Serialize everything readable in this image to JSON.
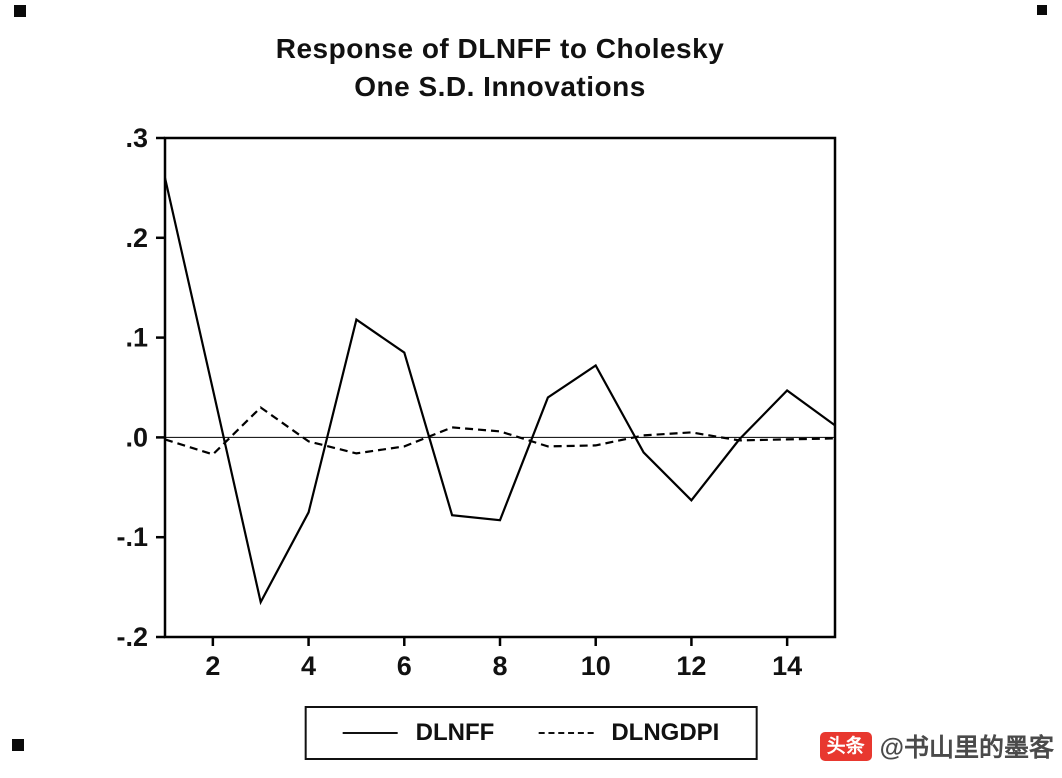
{
  "page": {
    "watermark": {
      "badge": "头条",
      "handle": "@书山里的墨客",
      "badge_color": "#e8382f"
    }
  },
  "chart_data": {
    "type": "line",
    "title": "Response of DLNFF to Cholesky One S.D. Innovations",
    "title_lines": [
      "Response of DLNFF to Cholesky",
      "One S.D. Innovations"
    ],
    "xlabel": "",
    "ylabel": "",
    "x": [
      1,
      2,
      3,
      4,
      5,
      6,
      7,
      8,
      9,
      10,
      11,
      12,
      13,
      14,
      15
    ],
    "xlim": [
      1,
      15
    ],
    "ylim": [
      -0.2,
      0.3
    ],
    "xticks": [
      2,
      4,
      6,
      8,
      10,
      12,
      14
    ],
    "yticks": [
      {
        "label": ".3",
        "value": 0.3
      },
      {
        "label": ".2",
        "value": 0.2
      },
      {
        "label": ".1",
        "value": 0.1
      },
      {
        "label": ".0",
        "value": 0.0
      },
      {
        "label": "-.1",
        "value": -0.1
      },
      {
        "label": "-.2",
        "value": -0.2
      }
    ],
    "grid": false,
    "zero_line": true,
    "frame": true,
    "legend_position": "bottom",
    "line_color": "#000000",
    "series": [
      {
        "name": "DLNFF",
        "style": "solid",
        "values": [
          0.26,
          0.048,
          -0.165,
          -0.075,
          0.118,
          0.085,
          -0.078,
          -0.083,
          0.04,
          0.072,
          -0.015,
          -0.063,
          -0.002,
          0.047,
          0.012
        ]
      },
      {
        "name": "DLNGDPI",
        "style": "dashed",
        "values": [
          -0.002,
          -0.017,
          0.03,
          -0.004,
          -0.016,
          -0.009,
          0.01,
          0.006,
          -0.009,
          -0.008,
          0.002,
          0.005,
          -0.003,
          -0.002,
          -0.001
        ]
      }
    ]
  }
}
